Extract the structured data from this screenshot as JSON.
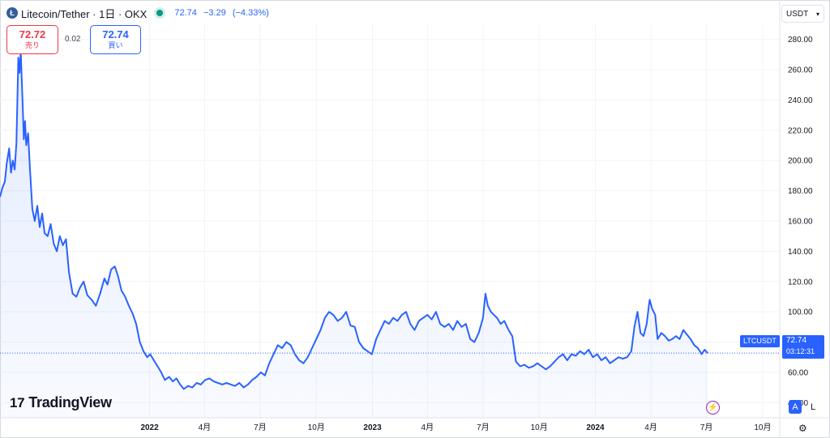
{
  "header": {
    "title": "Litecoin/Tether · 1日 · OKX",
    "last": "72.74",
    "change": "−3.29",
    "change_pct": "(−4.33%)"
  },
  "trade": {
    "sell_price": "72.72",
    "sell_label": "売り",
    "spread": "0.02",
    "buy_price": "72.74",
    "buy_label": "買い"
  },
  "currency_select": "USDT",
  "price_label": {
    "symbol": "LTCUSDT",
    "value": "72.74",
    "countdown": "03:12:31"
  },
  "controls": {
    "auto_label": "A",
    "log_label": "L"
  },
  "branding": "TradingView",
  "colors": {
    "line": "#2962ff",
    "area_fill": "#e8eefc",
    "grid": "#f0f3fa",
    "price_label_bg": "#2962ff",
    "sell": "#f23645",
    "buy": "#2962ff"
  },
  "chart_data": {
    "type": "area",
    "title": "Litecoin/Tether · 1日 · OKX",
    "xlabel": "",
    "ylabel": "",
    "ylim": [
      30,
      290
    ],
    "y_ticks": [
      "40.00",
      "60.00",
      "80.00",
      "100.00",
      "120.00",
      "140.00",
      "160.00",
      "180.00",
      "200.00",
      "220.00",
      "240.00",
      "260.00",
      "280.00"
    ],
    "x_tick_labels": [
      "2022",
      "4月",
      "7月",
      "10月",
      "2023",
      "4月",
      "7月",
      "10月",
      "2024",
      "4月",
      "7月",
      "10月"
    ],
    "x_tick_dates": [
      "2022-01-01",
      "2022-04-01",
      "2022-07-01",
      "2022-10-01",
      "2023-01-01",
      "2023-04-01",
      "2023-07-01",
      "2023-10-01",
      "2024-01-01",
      "2024-04-01",
      "2024-07-01",
      "2024-10-01"
    ],
    "grid": true,
    "last_value": 72.74,
    "series": [
      {
        "points": [
          [
            "2021-05-01",
            176
          ],
          [
            "2021-05-05",
            182
          ],
          [
            "2021-05-09",
            186
          ],
          [
            "2021-05-12",
            198
          ],
          [
            "2021-05-16",
            208
          ],
          [
            "2021-05-19",
            192
          ],
          [
            "2021-05-22",
            200
          ],
          [
            "2021-05-25",
            194
          ],
          [
            "2021-05-28",
            212
          ],
          [
            "2021-05-31",
            268
          ],
          [
            "2021-06-02",
            258
          ],
          [
            "2021-06-04",
            272
          ],
          [
            "2021-06-07",
            238
          ],
          [
            "2021-06-09",
            214
          ],
          [
            "2021-06-11",
            226
          ],
          [
            "2021-06-13",
            210
          ],
          [
            "2021-06-16",
            218
          ],
          [
            "2021-06-19",
            195
          ],
          [
            "2021-06-23",
            168
          ],
          [
            "2021-06-27",
            160
          ],
          [
            "2021-07-01",
            170
          ],
          [
            "2021-07-05",
            156
          ],
          [
            "2021-07-09",
            165
          ],
          [
            "2021-07-13",
            152
          ],
          [
            "2021-07-18",
            150
          ],
          [
            "2021-07-23",
            158
          ],
          [
            "2021-07-28",
            145
          ],
          [
            "2021-08-02",
            140
          ],
          [
            "2021-08-07",
            150
          ],
          [
            "2021-08-12",
            144
          ],
          [
            "2021-08-17",
            148
          ],
          [
            "2021-08-22",
            126
          ],
          [
            "2021-08-28",
            112
          ],
          [
            "2021-09-03",
            110
          ],
          [
            "2021-09-09",
            116
          ],
          [
            "2021-09-15",
            120
          ],
          [
            "2021-09-21",
            111
          ],
          [
            "2021-09-28",
            108
          ],
          [
            "2021-10-05",
            104
          ],
          [
            "2021-10-12",
            112
          ],
          [
            "2021-10-19",
            122
          ],
          [
            "2021-10-24",
            118
          ],
          [
            "2021-10-30",
            128
          ],
          [
            "2021-11-05",
            130
          ],
          [
            "2021-11-10",
            124
          ],
          [
            "2021-11-16",
            114
          ],
          [
            "2021-11-22",
            110
          ],
          [
            "2021-11-28",
            104
          ],
          [
            "2021-12-04",
            99
          ],
          [
            "2021-12-10",
            92
          ],
          [
            "2021-12-16",
            80
          ],
          [
            "2021-12-22",
            74
          ],
          [
            "2021-12-28",
            70
          ],
          [
            "2022-01-02",
            72
          ],
          [
            "2022-01-08",
            68
          ],
          [
            "2022-01-14",
            64
          ],
          [
            "2022-01-20",
            60
          ],
          [
            "2022-01-26",
            55
          ],
          [
            "2022-02-02",
            57
          ],
          [
            "2022-02-08",
            54
          ],
          [
            "2022-02-14",
            56
          ],
          [
            "2022-02-20",
            52
          ],
          [
            "2022-02-26",
            49
          ],
          [
            "2022-03-05",
            51
          ],
          [
            "2022-03-12",
            50
          ],
          [
            "2022-03-19",
            53
          ],
          [
            "2022-03-26",
            52
          ],
          [
            "2022-04-02",
            55
          ],
          [
            "2022-04-09",
            56
          ],
          [
            "2022-04-16",
            54
          ],
          [
            "2022-04-23",
            53
          ],
          [
            "2022-04-30",
            52
          ],
          [
            "2022-05-07",
            53
          ],
          [
            "2022-05-14",
            52
          ],
          [
            "2022-05-21",
            51
          ],
          [
            "2022-05-28",
            53
          ],
          [
            "2022-06-04",
            50
          ],
          [
            "2022-06-11",
            52
          ],
          [
            "2022-06-18",
            55
          ],
          [
            "2022-06-25",
            57
          ],
          [
            "2022-07-02",
            60
          ],
          [
            "2022-07-09",
            58
          ],
          [
            "2022-07-16",
            66
          ],
          [
            "2022-07-23",
            72
          ],
          [
            "2022-07-30",
            78
          ],
          [
            "2022-08-06",
            76
          ],
          [
            "2022-08-13",
            80
          ],
          [
            "2022-08-20",
            78
          ],
          [
            "2022-08-27",
            72
          ],
          [
            "2022-09-03",
            68
          ],
          [
            "2022-09-10",
            66
          ],
          [
            "2022-09-17",
            70
          ],
          [
            "2022-09-24",
            76
          ],
          [
            "2022-10-01",
            82
          ],
          [
            "2022-10-08",
            88
          ],
          [
            "2022-10-15",
            96
          ],
          [
            "2022-10-22",
            100
          ],
          [
            "2022-10-29",
            98
          ],
          [
            "2022-11-05",
            94
          ],
          [
            "2022-11-12",
            96
          ],
          [
            "2022-11-19",
            100
          ],
          [
            "2022-11-26",
            91
          ],
          [
            "2022-12-03",
            90
          ],
          [
            "2022-12-10",
            80
          ],
          [
            "2022-12-17",
            76
          ],
          [
            "2022-12-24",
            74
          ],
          [
            "2022-12-31",
            72
          ],
          [
            "2023-01-07",
            82
          ],
          [
            "2023-01-14",
            88
          ],
          [
            "2023-01-21",
            94
          ],
          [
            "2023-01-28",
            92
          ],
          [
            "2023-02-04",
            96
          ],
          [
            "2023-02-11",
            94
          ],
          [
            "2023-02-18",
            98
          ],
          [
            "2023-02-25",
            100
          ],
          [
            "2023-03-04",
            92
          ],
          [
            "2023-03-11",
            88
          ],
          [
            "2023-03-18",
            94
          ],
          [
            "2023-03-25",
            96
          ],
          [
            "2023-04-01",
            98
          ],
          [
            "2023-04-08",
            95
          ],
          [
            "2023-04-15",
            100
          ],
          [
            "2023-04-22",
            92
          ],
          [
            "2023-04-29",
            90
          ],
          [
            "2023-05-06",
            92
          ],
          [
            "2023-05-13",
            88
          ],
          [
            "2023-05-20",
            94
          ],
          [
            "2023-05-27",
            90
          ],
          [
            "2023-06-03",
            92
          ],
          [
            "2023-06-10",
            82
          ],
          [
            "2023-06-17",
            80
          ],
          [
            "2023-06-24",
            86
          ],
          [
            "2023-07-01",
            96
          ],
          [
            "2023-07-05",
            112
          ],
          [
            "2023-07-09",
            104
          ],
          [
            "2023-07-14",
            100
          ],
          [
            "2023-07-19",
            98
          ],
          [
            "2023-07-24",
            96
          ],
          [
            "2023-07-30",
            92
          ],
          [
            "2023-08-05",
            94
          ],
          [
            "2023-08-12",
            88
          ],
          [
            "2023-08-18",
            84
          ],
          [
            "2023-08-24",
            67
          ],
          [
            "2023-08-31",
            64
          ],
          [
            "2023-09-07",
            65
          ],
          [
            "2023-09-14",
            63
          ],
          [
            "2023-09-21",
            64
          ],
          [
            "2023-09-28",
            66
          ],
          [
            "2023-10-05",
            64
          ],
          [
            "2023-10-12",
            62
          ],
          [
            "2023-10-19",
            64
          ],
          [
            "2023-10-26",
            67
          ],
          [
            "2023-11-02",
            70
          ],
          [
            "2023-11-09",
            72
          ],
          [
            "2023-11-16",
            68
          ],
          [
            "2023-11-23",
            72
          ],
          [
            "2023-11-30",
            71
          ],
          [
            "2023-12-07",
            74
          ],
          [
            "2023-12-14",
            72
          ],
          [
            "2023-12-21",
            75
          ],
          [
            "2023-12-28",
            70
          ],
          [
            "2024-01-04",
            72
          ],
          [
            "2024-01-11",
            68
          ],
          [
            "2024-01-18",
            70
          ],
          [
            "2024-01-25",
            66
          ],
          [
            "2024-02-01",
            68
          ],
          [
            "2024-02-08",
            70
          ],
          [
            "2024-02-15",
            69
          ],
          [
            "2024-02-22",
            70
          ],
          [
            "2024-02-29",
            74
          ],
          [
            "2024-03-05",
            90
          ],
          [
            "2024-03-10",
            100
          ],
          [
            "2024-03-15",
            86
          ],
          [
            "2024-03-20",
            84
          ],
          [
            "2024-03-25",
            92
          ],
          [
            "2024-03-30",
            108
          ],
          [
            "2024-04-03",
            102
          ],
          [
            "2024-04-08",
            98
          ],
          [
            "2024-04-12",
            82
          ],
          [
            "2024-04-18",
            86
          ],
          [
            "2024-04-24",
            84
          ],
          [
            "2024-04-30",
            81
          ],
          [
            "2024-05-06",
            82
          ],
          [
            "2024-05-12",
            84
          ],
          [
            "2024-05-18",
            82
          ],
          [
            "2024-05-24",
            88
          ],
          [
            "2024-05-30",
            85
          ],
          [
            "2024-06-05",
            82
          ],
          [
            "2024-06-11",
            78
          ],
          [
            "2024-06-17",
            76
          ],
          [
            "2024-06-23",
            72
          ],
          [
            "2024-06-28",
            75
          ],
          [
            "2024-07-03",
            72.74
          ]
        ]
      }
    ]
  }
}
